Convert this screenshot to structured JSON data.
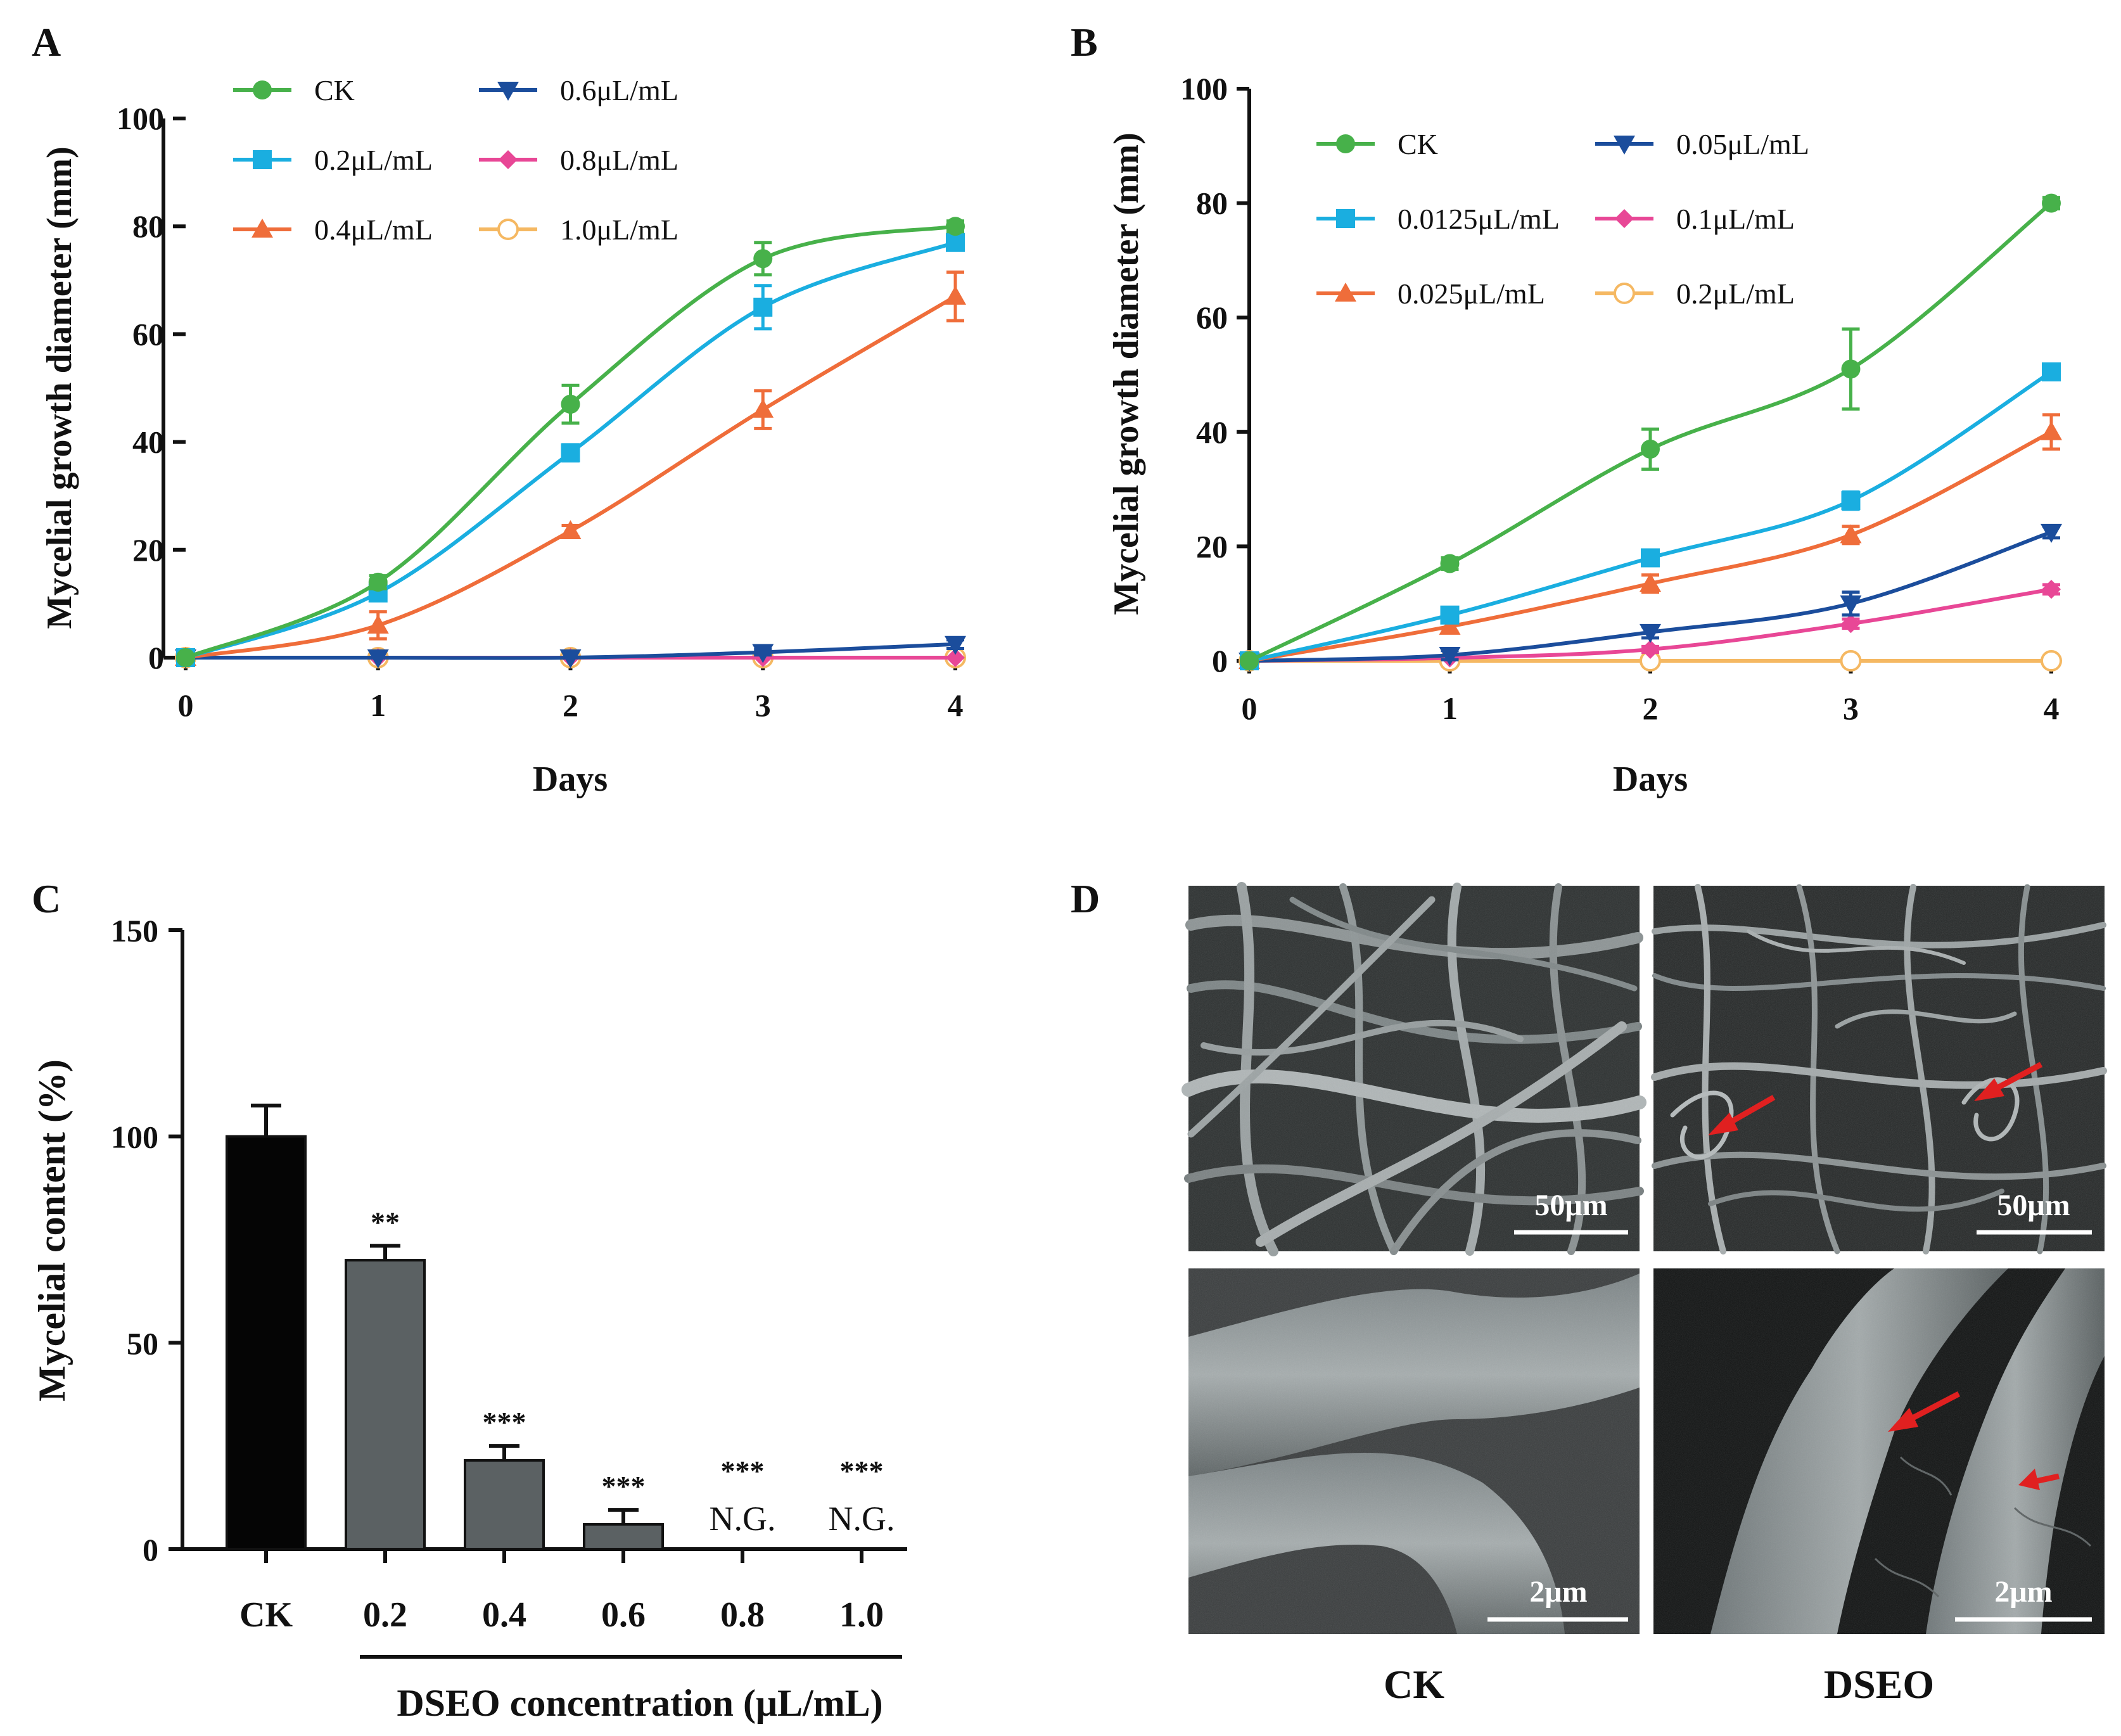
{
  "colors": {
    "CK": "#47b14a",
    "c1": "#1aaee0",
    "c2": "#ef6d3a",
    "c3": "#1b4d9c",
    "c4": "#e84796",
    "c5": "#f5b862",
    "barCK": "#050505",
    "barDose": "#5b6163",
    "arrow": "#e02020"
  },
  "chart_data": [
    {
      "panel": "A",
      "type": "line",
      "xlabel": "Days",
      "ylabel": "Mycelial growth diameter (mm)",
      "x": [
        0,
        1,
        2,
        3,
        4
      ],
      "xticks": [
        "0",
        "1",
        "2",
        "3",
        "4"
      ],
      "yticks": [
        "0",
        "20",
        "40",
        "60",
        "80",
        "100"
      ],
      "xlim": [
        0,
        4
      ],
      "ylim": [
        0,
        100
      ],
      "series": [
        {
          "name": "CK",
          "marker": "circle",
          "values": [
            0,
            14,
            47,
            74,
            80
          ],
          "errors": [
            0.5,
            1.2,
            3.5,
            3,
            1
          ]
        },
        {
          "name": "0.2μL/mL",
          "marker": "square",
          "values": [
            0,
            12,
            38,
            65,
            77
          ],
          "errors": [
            0.5,
            1.2,
            1.5,
            4,
            1.2
          ]
        },
        {
          "name": "0.4μL/mL",
          "marker": "triangle",
          "values": [
            0,
            6,
            23.5,
            46,
            67
          ],
          "errors": [
            0.5,
            2.5,
            1,
            3.5,
            4.5
          ]
        },
        {
          "name": "0.6μL/mL",
          "marker": "triangle-down",
          "values": [
            0,
            0,
            0,
            1,
            2.5
          ],
          "errors": [
            0,
            0,
            0,
            0.5,
            0.8
          ]
        },
        {
          "name": "0.8μL/mL",
          "marker": "diamond",
          "values": [
            0,
            0,
            0,
            0,
            0
          ],
          "errors": [
            0,
            0,
            0,
            0,
            0
          ]
        },
        {
          "name": "1.0μL/mL",
          "marker": "open-circle",
          "values": [
            0,
            0,
            0,
            0,
            0
          ],
          "errors": [
            0,
            0,
            0,
            0,
            0
          ]
        }
      ]
    },
    {
      "panel": "B",
      "type": "line",
      "xlabel": "Days",
      "ylabel": "Mycelial growth diameter (mm)",
      "x": [
        0,
        1,
        2,
        3,
        4
      ],
      "xticks": [
        "0",
        "1",
        "2",
        "3",
        "4"
      ],
      "yticks": [
        "0",
        "20",
        "40",
        "60",
        "80",
        "100"
      ],
      "xlim": [
        0,
        4
      ],
      "ylim": [
        0,
        100
      ],
      "series": [
        {
          "name": "CK",
          "marker": "circle",
          "values": [
            0,
            17,
            37,
            51,
            80
          ],
          "errors": [
            0.5,
            1,
            3.5,
            7,
            1
          ]
        },
        {
          "name": "0.0125μL/mL",
          "marker": "square",
          "values": [
            0,
            8,
            18,
            28,
            50.5
          ],
          "errors": [
            0.5,
            1,
            1.2,
            1.5,
            1.2
          ]
        },
        {
          "name": "0.025μL/mL",
          "marker": "triangle",
          "values": [
            0,
            6,
            13.5,
            22,
            40
          ],
          "errors": [
            0.5,
            1,
            1.5,
            1.5,
            3
          ]
        },
        {
          "name": "0.05μL/mL",
          "marker": "triangle-down",
          "values": [
            0,
            1,
            5,
            10,
            22.5
          ],
          "errors": [
            0.3,
            0.8,
            1,
            2,
            1
          ]
        },
        {
          "name": "0.1μL/mL",
          "marker": "diamond",
          "values": [
            0,
            0.5,
            2,
            6.5,
            12.5
          ],
          "errors": [
            0,
            0.3,
            0.5,
            0.8,
            0.8
          ]
        },
        {
          "name": "0.2μL/mL",
          "marker": "open-circle",
          "values": [
            0,
            0,
            0,
            0,
            0
          ],
          "errors": [
            0,
            0,
            0,
            0,
            0
          ]
        }
      ]
    },
    {
      "panel": "C",
      "type": "bar",
      "xlabel": "DSEO concentration (μL/mL)",
      "ylabel": "Mycelial content (%)",
      "categories": [
        "CK",
        "0.2",
        "0.4",
        "0.6",
        "0.8",
        "1.0"
      ],
      "values": [
        100,
        70,
        21.5,
        6,
        0,
        0
      ],
      "errors": [
        7.5,
        3.5,
        3.5,
        3.5,
        0,
        0
      ],
      "significance": [
        "",
        "**",
        "***",
        "***",
        "***",
        "***"
      ],
      "notes": [
        "",
        "",
        "",
        "",
        "N.G.",
        "N.G."
      ],
      "yticks": [
        "0",
        "50",
        "100",
        "150"
      ],
      "ylim": [
        0,
        150
      ]
    }
  ],
  "panel_letters": {
    "a": "A",
    "b": "B",
    "c": "C",
    "d": "D"
  },
  "panelD": {
    "scale_top_left": "50μm",
    "scale_top_right": "50μm",
    "scale_bottom_left": "2μm",
    "scale_bottom_right": "2μm",
    "caption_left": "CK",
    "caption_right": "DSEO"
  }
}
